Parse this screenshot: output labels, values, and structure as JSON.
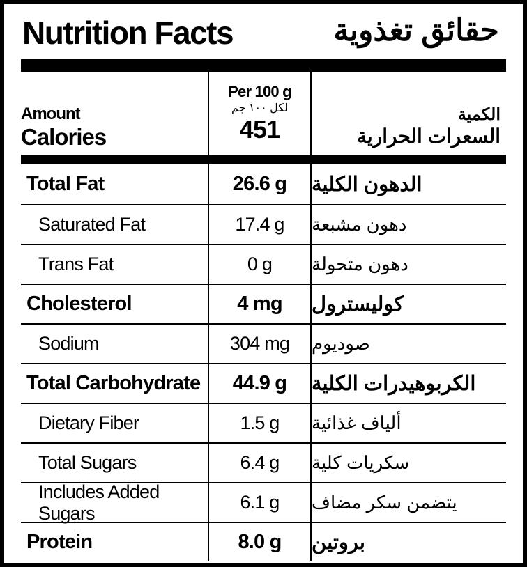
{
  "header": {
    "title": "Nutrition Facts",
    "title_ar": "حقائق تغذوية"
  },
  "columns": {
    "amount": "Amount",
    "calories": "Calories",
    "per": "Per 100 g",
    "per_ar": "لكل ١٠٠ جم",
    "calories_value": "451",
    "amount_ar": "الكمية",
    "calories_ar": "السعرات الحرارية"
  },
  "rows": [
    {
      "label": "Total Fat",
      "value": "26.6 g",
      "label_ar": "الدهون الكلية"
    },
    {
      "label": "Saturated Fat",
      "value": "17.4 g",
      "label_ar": "دهون مشبعة"
    },
    {
      "label": "Trans Fat",
      "value": "0 g",
      "label_ar": "دهون متحولة"
    },
    {
      "label": "Cholesterol",
      "value": "4 mg",
      "label_ar": "كوليسترول"
    },
    {
      "label": "Sodium",
      "value": "304 mg",
      "label_ar": "صوديوم"
    },
    {
      "label": "Total Carbohydrate",
      "value": "44.9 g",
      "label_ar": "الكربوهيدرات الكلية"
    },
    {
      "label": "Dietary Fiber",
      "value": "1.5 g",
      "label_ar": "ألياف غذائية"
    },
    {
      "label": "Total Sugars",
      "value": "6.4 g",
      "label_ar": "سكريات كلية"
    },
    {
      "label": "Includes Added Sugars",
      "value": "6.1 g",
      "label_ar": "يتضمن سكر مضاف"
    },
    {
      "label": "Protein",
      "value": "8.0 g",
      "label_ar": "بروتين"
    }
  ]
}
